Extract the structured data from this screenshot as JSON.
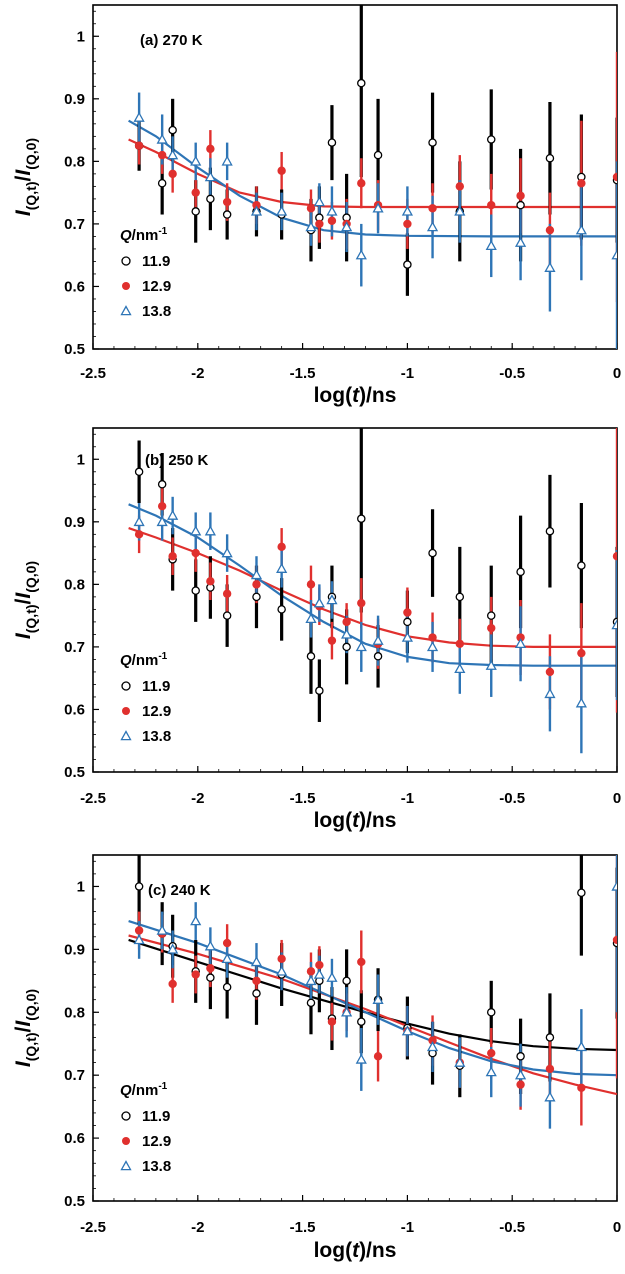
{
  "chart_data": [
    {
      "type": "scatter",
      "title": "(a) 270 K",
      "xlabel": "log(t)/ns",
      "ylabel": "I(Q,t)/I(Q,0)",
      "xlim": [
        -2.5,
        0
      ],
      "ylim": [
        0.5,
        1.05
      ],
      "xticks": [
        -2.5,
        -2,
        -1.5,
        -1,
        -0.5,
        0
      ],
      "xtick_labels": [
        "-2.5",
        "-2",
        "-1.5",
        "-1",
        "-0.5",
        "0"
      ],
      "yticks": [
        0.5,
        0.6,
        0.7,
        0.8,
        0.9,
        1.0
      ],
      "ytick_labels": [
        "0.5",
        "0.6",
        "0.7",
        "0.8",
        "0.9",
        "1"
      ],
      "grid": false,
      "legend": {
        "title": "Q/nm-1",
        "title_main": "Q",
        "title_unit": "/nm",
        "title_sup": "-1",
        "placement": "left"
      },
      "series": [
        {
          "name": "11.9",
          "marker": "open-circle",
          "color": "#000000",
          "x": [
            -2.28,
            -2.17,
            -2.12,
            -2.01,
            -1.94,
            -1.86,
            -1.72,
            -1.6,
            -1.46,
            -1.42,
            -1.36,
            -1.29,
            -1.22,
            -1.14,
            -1.0,
            -0.88,
            -0.75,
            -0.6,
            -0.46,
            -0.32,
            -0.17,
            0.0
          ],
          "y": [
            0.825,
            0.765,
            0.85,
            0.72,
            0.74,
            0.715,
            0.72,
            0.715,
            0.69,
            0.71,
            0.83,
            0.71,
            0.925,
            0.81,
            0.635,
            0.83,
            0.72,
            0.835,
            0.73,
            0.805,
            0.775,
            0.77
          ],
          "err": [
            0.04,
            0.05,
            0.05,
            0.05,
            0.05,
            0.04,
            0.04,
            0.04,
            0.05,
            0.05,
            0.06,
            0.07,
            0.15,
            0.09,
            0.05,
            0.08,
            0.08,
            0.08,
            0.09,
            0.09,
            0.1,
            0.1
          ],
          "fit": {
            "color": "#000000",
            "x": [],
            "y": []
          }
        },
        {
          "name": "12.9",
          "marker": "filled-circle",
          "color": "#e0302e",
          "x": [
            -2.28,
            -2.17,
            -2.12,
            -2.01,
            -1.94,
            -1.86,
            -1.72,
            -1.6,
            -1.46,
            -1.42,
            -1.36,
            -1.29,
            -1.22,
            -1.14,
            -1.0,
            -0.88,
            -0.75,
            -0.6,
            -0.46,
            -0.32,
            -0.17,
            0.0
          ],
          "y": [
            0.825,
            0.81,
            0.78,
            0.75,
            0.82,
            0.735,
            0.73,
            0.785,
            0.725,
            0.7,
            0.705,
            0.7,
            0.765,
            0.73,
            0.7,
            0.725,
            0.76,
            0.73,
            0.745,
            0.69,
            0.765,
            0.775
          ],
          "err": [
            0.03,
            0.03,
            0.03,
            0.03,
            0.03,
            0.03,
            0.03,
            0.03,
            0.03,
            0.03,
            0.03,
            0.04,
            0.04,
            0.04,
            0.04,
            0.04,
            0.05,
            0.05,
            0.06,
            0.06,
            0.1,
            0.2
          ],
          "fit": {
            "color": "#e0302e",
            "x": [
              -2.33,
              -2.2,
              -2.0,
              -1.8,
              -1.6,
              -1.4,
              -1.2,
              -1.0,
              -0.6,
              0.0
            ],
            "y": [
              0.835,
              0.815,
              0.78,
              0.75,
              0.735,
              0.728,
              0.727,
              0.727,
              0.727,
              0.727
            ]
          }
        },
        {
          "name": "13.8",
          "marker": "open-triangle",
          "color": "#2e75b6",
          "x": [
            -2.28,
            -2.17,
            -2.12,
            -2.01,
            -1.94,
            -1.86,
            -1.72,
            -1.6,
            -1.46,
            -1.42,
            -1.36,
            -1.29,
            -1.22,
            -1.14,
            -1.0,
            -0.88,
            -0.75,
            -0.6,
            -0.46,
            -0.32,
            -0.17,
            0.0
          ],
          "y": [
            0.87,
            0.835,
            0.81,
            0.8,
            0.775,
            0.8,
            0.72,
            0.72,
            0.695,
            0.735,
            0.72,
            0.695,
            0.65,
            0.725,
            0.72,
            0.695,
            0.72,
            0.665,
            0.67,
            0.63,
            0.69,
            0.65
          ],
          "err": [
            0.04,
            0.04,
            0.03,
            0.03,
            0.03,
            0.03,
            0.03,
            0.03,
            0.03,
            0.03,
            0.04,
            0.04,
            0.05,
            0.04,
            0.04,
            0.05,
            0.05,
            0.05,
            0.06,
            0.07,
            0.08,
            0.15
          ],
          "fit": {
            "color": "#2e75b6",
            "x": [
              -2.33,
              -2.2,
              -2.0,
              -1.8,
              -1.6,
              -1.4,
              -1.2,
              -1.0,
              -0.6,
              0.0
            ],
            "y": [
              0.865,
              0.84,
              0.79,
              0.745,
              0.71,
              0.69,
              0.683,
              0.681,
              0.68,
              0.68
            ]
          }
        }
      ]
    },
    {
      "type": "scatter",
      "title": "(b) 250 K",
      "xlabel": "log(t)/ns",
      "ylabel": "I(Q,t)/I(Q,0)",
      "xlim": [
        -2.5,
        0
      ],
      "ylim": [
        0.5,
        1.05
      ],
      "xticks": [
        -2.5,
        -2,
        -1.5,
        -1,
        -0.5,
        0
      ],
      "xtick_labels": [
        "-2.5",
        "-2",
        "-1.5",
        "-1",
        "-0.5",
        "0"
      ],
      "yticks": [
        0.5,
        0.6,
        0.7,
        0.8,
        0.9,
        1.0
      ],
      "ytick_labels": [
        "0.5",
        "0.6",
        "0.7",
        "0.8",
        "0.9",
        "1"
      ],
      "grid": false,
      "legend": {
        "title": "Q/nm-1",
        "title_main": "Q",
        "title_unit": "/nm",
        "title_sup": "-1",
        "placement": "left"
      },
      "series": [
        {
          "name": "11.9",
          "marker": "open-circle",
          "color": "#000000",
          "x": [
            -2.28,
            -2.17,
            -2.12,
            -2.01,
            -1.94,
            -1.86,
            -1.72,
            -1.6,
            -1.46,
            -1.42,
            -1.36,
            -1.29,
            -1.22,
            -1.14,
            -1.0,
            -0.88,
            -0.75,
            -0.6,
            -0.46,
            -0.32,
            -0.17,
            0.0
          ],
          "y": [
            0.98,
            0.96,
            0.84,
            0.79,
            0.795,
            0.75,
            0.78,
            0.76,
            0.685,
            0.63,
            0.78,
            0.7,
            0.905,
            0.685,
            0.74,
            0.85,
            0.78,
            0.75,
            0.82,
            0.885,
            0.83,
            0.74
          ],
          "err": [
            0.05,
            0.05,
            0.05,
            0.05,
            0.05,
            0.05,
            0.05,
            0.05,
            0.06,
            0.05,
            0.05,
            0.06,
            0.15,
            0.05,
            0.05,
            0.07,
            0.08,
            0.08,
            0.09,
            0.09,
            0.1,
            0.12
          ],
          "fit": {
            "color": "#000000",
            "x": [],
            "y": []
          }
        },
        {
          "name": "12.9",
          "marker": "filled-circle",
          "color": "#e0302e",
          "x": [
            -2.28,
            -2.17,
            -2.12,
            -2.01,
            -1.94,
            -1.86,
            -1.72,
            -1.6,
            -1.46,
            -1.42,
            -1.36,
            -1.29,
            -1.22,
            -1.14,
            -1.0,
            -0.88,
            -0.75,
            -0.6,
            -0.46,
            -0.32,
            -0.17,
            0.0
          ],
          "y": [
            0.88,
            0.925,
            0.845,
            0.85,
            0.805,
            0.785,
            0.8,
            0.86,
            0.8,
            0.765,
            0.71,
            0.74,
            0.77,
            0.705,
            0.755,
            0.715,
            0.705,
            0.73,
            0.715,
            0.66,
            0.69,
            0.845
          ],
          "err": [
            0.03,
            0.03,
            0.03,
            0.03,
            0.03,
            0.03,
            0.03,
            0.03,
            0.03,
            0.03,
            0.03,
            0.03,
            0.04,
            0.04,
            0.04,
            0.04,
            0.04,
            0.05,
            0.06,
            0.06,
            0.08,
            0.25
          ],
          "fit": {
            "color": "#e0302e",
            "x": [
              -2.33,
              -2.2,
              -2.0,
              -1.8,
              -1.6,
              -1.4,
              -1.2,
              -1.0,
              -0.8,
              -0.6,
              -0.4,
              0.0
            ],
            "y": [
              0.89,
              0.875,
              0.85,
              0.822,
              0.79,
              0.76,
              0.735,
              0.717,
              0.707,
              0.702,
              0.7,
              0.7
            ]
          }
        },
        {
          "name": "13.8",
          "marker": "open-triangle",
          "color": "#2e75b6",
          "x": [
            -2.28,
            -2.17,
            -2.12,
            -2.01,
            -1.94,
            -1.86,
            -1.72,
            -1.6,
            -1.46,
            -1.42,
            -1.36,
            -1.29,
            -1.22,
            -1.14,
            -1.0,
            -0.88,
            -0.75,
            -0.6,
            -0.46,
            -0.32,
            -0.17,
            0.0
          ],
          "y": [
            0.9,
            0.9,
            0.91,
            0.885,
            0.885,
            0.85,
            0.815,
            0.825,
            0.745,
            0.77,
            0.775,
            0.72,
            0.7,
            0.71,
            0.715,
            0.7,
            0.665,
            0.67,
            0.705,
            0.625,
            0.61,
            0.735
          ],
          "err": [
            0.03,
            0.03,
            0.03,
            0.03,
            0.03,
            0.03,
            0.03,
            0.03,
            0.03,
            0.03,
            0.03,
            0.03,
            0.04,
            0.04,
            0.04,
            0.04,
            0.04,
            0.05,
            0.06,
            0.06,
            0.08,
            0.12
          ],
          "fit": {
            "color": "#2e75b6",
            "x": [
              -2.33,
              -2.2,
              -2.0,
              -1.8,
              -1.6,
              -1.4,
              -1.2,
              -1.0,
              -0.8,
              -0.6,
              -0.4,
              0.0
            ],
            "y": [
              0.928,
              0.91,
              0.875,
              0.83,
              0.782,
              0.74,
              0.705,
              0.684,
              0.674,
              0.671,
              0.67,
              0.67
            ]
          }
        }
      ]
    },
    {
      "type": "scatter",
      "title": "(c) 240 K",
      "xlabel": "log(t)/ns",
      "ylabel": "I(Q,t)/I(Q,0)",
      "xlim": [
        -2.5,
        0
      ],
      "ylim": [
        0.5,
        1.05
      ],
      "xticks": [
        -2.5,
        -2,
        -1.5,
        -1,
        -0.5,
        0
      ],
      "xtick_labels": [
        "-2.5",
        "-2",
        "-1.5",
        "-1",
        "-0.5",
        "0"
      ],
      "yticks": [
        0.5,
        0.6,
        0.7,
        0.8,
        0.9,
        1.0
      ],
      "ytick_labels": [
        "0.5",
        "0.6",
        "0.7",
        "0.8",
        "0.9",
        "1"
      ],
      "grid": false,
      "legend": {
        "title": "Q/nm-1",
        "title_main": "Q",
        "title_unit": "/nm",
        "title_sup": "-1",
        "placement": "left"
      },
      "series": [
        {
          "name": "11.9",
          "marker": "open-circle",
          "color": "#000000",
          "x": [
            -2.28,
            -2.17,
            -2.12,
            -2.01,
            -1.94,
            -1.86,
            -1.72,
            -1.6,
            -1.46,
            -1.42,
            -1.36,
            -1.29,
            -1.22,
            -1.14,
            -1.0,
            -0.88,
            -0.75,
            -0.6,
            -0.46,
            -0.32,
            -0.17,
            0.0
          ],
          "y": [
            1.0,
            0.925,
            0.905,
            0.865,
            0.855,
            0.84,
            0.83,
            0.86,
            0.815,
            0.85,
            0.79,
            0.85,
            0.785,
            0.82,
            0.775,
            0.735,
            0.715,
            0.8,
            0.73,
            0.76,
            0.99,
            0.91
          ],
          "err": [
            0.06,
            0.05,
            0.05,
            0.05,
            0.05,
            0.05,
            0.05,
            0.05,
            0.05,
            0.05,
            0.05,
            0.05,
            0.05,
            0.05,
            0.05,
            0.05,
            0.05,
            0.05,
            0.06,
            0.07,
            0.1,
            0.12
          ],
          "fit": {
            "color": "#000000",
            "x": [
              -2.33,
              -2.0,
              -1.6,
              -1.2,
              -1.0,
              -0.8,
              -0.6,
              -0.4,
              -0.2,
              0.0
            ],
            "y": [
              0.915,
              0.88,
              0.838,
              0.8,
              0.782,
              0.766,
              0.754,
              0.746,
              0.742,
              0.74
            ]
          }
        },
        {
          "name": "12.9",
          "marker": "filled-circle",
          "color": "#e0302e",
          "x": [
            -2.28,
            -2.17,
            -2.12,
            -2.01,
            -1.94,
            -1.86,
            -1.72,
            -1.6,
            -1.46,
            -1.42,
            -1.36,
            -1.29,
            -1.22,
            -1.14,
            -1.0,
            -0.88,
            -0.75,
            -0.6,
            -0.46,
            -0.32,
            -0.17,
            0.0
          ],
          "y": [
            0.93,
            0.925,
            0.845,
            0.86,
            0.87,
            0.91,
            0.85,
            0.885,
            0.865,
            0.875,
            0.785,
            0.8,
            0.88,
            0.73,
            0.77,
            0.755,
            0.72,
            0.735,
            0.685,
            0.71,
            0.68,
            0.915
          ],
          "err": [
            0.03,
            0.03,
            0.03,
            0.03,
            0.03,
            0.03,
            0.03,
            0.03,
            0.03,
            0.03,
            0.03,
            0.03,
            0.05,
            0.04,
            0.04,
            0.04,
            0.04,
            0.04,
            0.04,
            0.05,
            0.06,
            0.22
          ],
          "fit": {
            "color": "#e0302e",
            "x": [
              -2.33,
              -2.0,
              -1.6,
              -1.2,
              -1.0,
              -0.8,
              -0.6,
              -0.4,
              -0.2,
              0.0
            ],
            "y": [
              0.922,
              0.893,
              0.853,
              0.805,
              0.778,
              0.752,
              0.726,
              0.703,
              0.685,
              0.67
            ]
          }
        },
        {
          "name": "13.8",
          "marker": "open-triangle",
          "color": "#2e75b6",
          "x": [
            -2.28,
            -2.17,
            -2.12,
            -2.01,
            -1.94,
            -1.86,
            -1.72,
            -1.6,
            -1.46,
            -1.42,
            -1.36,
            -1.29,
            -1.22,
            -1.14,
            -1.0,
            -0.88,
            -0.75,
            -0.6,
            -0.46,
            -0.32,
            -0.17,
            0.0
          ],
          "y": [
            0.915,
            0.93,
            0.9,
            0.945,
            0.905,
            0.885,
            0.88,
            0.865,
            0.85,
            0.86,
            0.855,
            0.8,
            0.725,
            0.82,
            0.77,
            0.745,
            0.72,
            0.705,
            0.7,
            0.665,
            0.745,
            1.0
          ],
          "err": [
            0.03,
            0.03,
            0.03,
            0.03,
            0.03,
            0.03,
            0.03,
            0.03,
            0.03,
            0.03,
            0.03,
            0.04,
            0.05,
            0.04,
            0.04,
            0.04,
            0.04,
            0.04,
            0.05,
            0.05,
            0.06,
            0.2
          ],
          "fit": {
            "color": "#2e75b6",
            "x": [
              -2.33,
              -2.0,
              -1.6,
              -1.2,
              -1.0,
              -0.8,
              -0.6,
              -0.4,
              -0.2,
              0.0
            ],
            "y": [
              0.945,
              0.91,
              0.86,
              0.8,
              0.77,
              0.743,
              0.722,
              0.709,
              0.702,
              0.7
            ]
          }
        }
      ]
    }
  ]
}
